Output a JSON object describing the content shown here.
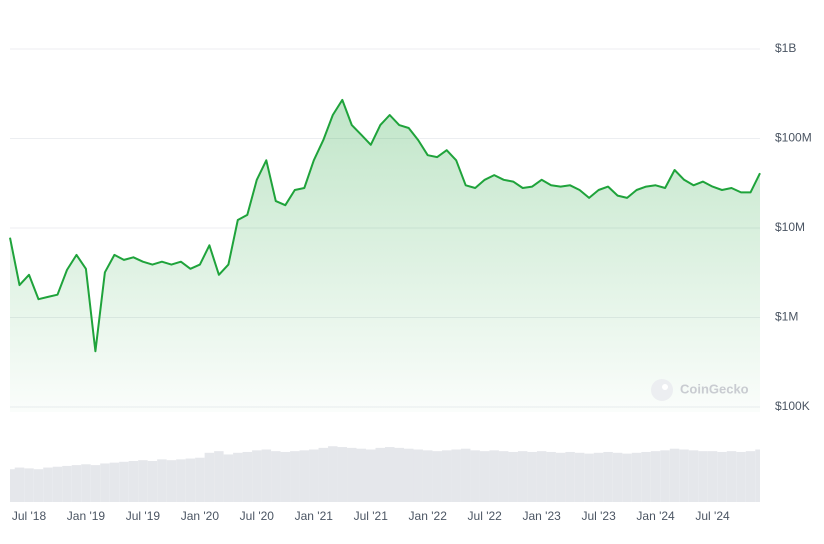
{
  "chart_data": {
    "type": "line",
    "log_scale": true,
    "grid": true,
    "color": "#1fa33b",
    "watermark": "CoinGecko",
    "x": [
      "2018-05",
      "2018-06",
      "2018-07",
      "2018-08",
      "2018-09",
      "2018-10",
      "2018-11",
      "2018-12",
      "2019-01",
      "2019-02",
      "2019-03",
      "2019-04",
      "2019-05",
      "2019-06",
      "2019-07",
      "2019-08",
      "2019-09",
      "2019-10",
      "2019-11",
      "2019-12",
      "2020-01",
      "2020-02",
      "2020-03",
      "2020-04",
      "2020-05",
      "2020-06",
      "2020-07",
      "2020-08",
      "2020-09",
      "2020-10",
      "2020-11",
      "2020-12",
      "2021-01",
      "2021-02",
      "2021-03",
      "2021-04",
      "2021-05",
      "2021-06",
      "2021-07",
      "2021-08",
      "2021-09",
      "2021-10",
      "2021-11",
      "2021-12",
      "2022-01",
      "2022-02",
      "2022-03",
      "2022-04",
      "2022-05",
      "2022-06",
      "2022-07",
      "2022-08",
      "2022-09",
      "2022-10",
      "2022-11",
      "2022-12",
      "2023-01",
      "2023-02",
      "2023-03",
      "2023-04",
      "2023-05",
      "2023-06",
      "2023-07",
      "2023-08",
      "2023-09",
      "2023-10",
      "2023-11",
      "2023-12",
      "2024-01",
      "2024-02",
      "2024-03",
      "2024-04",
      "2024-05",
      "2024-06",
      "2024-07",
      "2024-08",
      "2024-09",
      "2024-10",
      "2024-11",
      "2024-12"
    ],
    "values": [
      7800000,
      2300000,
      3000000,
      1600000,
      1700000,
      1800000,
      3400000,
      5000000,
      3500000,
      420000,
      3200000,
      5000000,
      4400000,
      4700000,
      4200000,
      3900000,
      4200000,
      3900000,
      4200000,
      3500000,
      3900000,
      6400000,
      3000000,
      3900000,
      12300000,
      14000000,
      34600000,
      57000000,
      20000000,
      18000000,
      26600000,
      28000000,
      57000000,
      96000000,
      183000000,
      270000000,
      141000000,
      110000000,
      85000000,
      141000000,
      183000000,
      141000000,
      131000000,
      96000000,
      65000000,
      62000000,
      74000000,
      57000000,
      30000000,
      28000000,
      34600000,
      39000000,
      34600000,
      33000000,
      28000000,
      29000000,
      34600000,
      30000000,
      29000000,
      30000000,
      26600000,
      21700000,
      26600000,
      29000000,
      23000000,
      21700000,
      26600000,
      29000000,
      30000000,
      28000000,
      44500000,
      34600000,
      30000000,
      33000000,
      29000000,
      26600000,
      28000000,
      25000000,
      25000000,
      41000000
    ],
    "volume": [
      40,
      42,
      41,
      40,
      42,
      43,
      44,
      45,
      46,
      45,
      47,
      48,
      49,
      50,
      51,
      50,
      52,
      51,
      52,
      53,
      54,
      60,
      62,
      58,
      60,
      61,
      63,
      64,
      62,
      61,
      62,
      63,
      64,
      66,
      68,
      67,
      66,
      65,
      64,
      66,
      67,
      66,
      65,
      64,
      63,
      62,
      63,
      64,
      65,
      63,
      62,
      63,
      62,
      61,
      62,
      61,
      62,
      61,
      60,
      61,
      60,
      59,
      60,
      61,
      60,
      59,
      60,
      61,
      62,
      63,
      65,
      64,
      63,
      62,
      62,
      61,
      62,
      61,
      62,
      64
    ],
    "volume_ylim": [
      0,
      100
    ],
    "xlim": [
      "2018-05",
      "2024-12"
    ],
    "xticks": [
      {
        "value": "2018-07",
        "label": "Jul '18"
      },
      {
        "value": "2019-01",
        "label": "Jan '19"
      },
      {
        "value": "2019-07",
        "label": "Jul '19"
      },
      {
        "value": "2020-01",
        "label": "Jan '20"
      },
      {
        "value": "2020-07",
        "label": "Jul '20"
      },
      {
        "value": "2021-01",
        "label": "Jan '21"
      },
      {
        "value": "2021-07",
        "label": "Jul '21"
      },
      {
        "value": "2022-01",
        "label": "Jan '22"
      },
      {
        "value": "2022-07",
        "label": "Jul '22"
      },
      {
        "value": "2023-01",
        "label": "Jan '23"
      },
      {
        "value": "2023-07",
        "label": "Jul '23"
      },
      {
        "value": "2024-01",
        "label": "Jan '24"
      },
      {
        "value": "2024-07",
        "label": "Jul '24"
      }
    ],
    "ylim": [
      100000,
      1000000000
    ],
    "yticks": [
      {
        "value": 1000000000,
        "label": "$1B"
      },
      {
        "value": 100000000,
        "label": "$100M"
      },
      {
        "value": 10000000,
        "label": "$10M"
      },
      {
        "value": 1000000,
        "label": "$1M"
      },
      {
        "value": 100000,
        "label": "$100K"
      }
    ]
  }
}
